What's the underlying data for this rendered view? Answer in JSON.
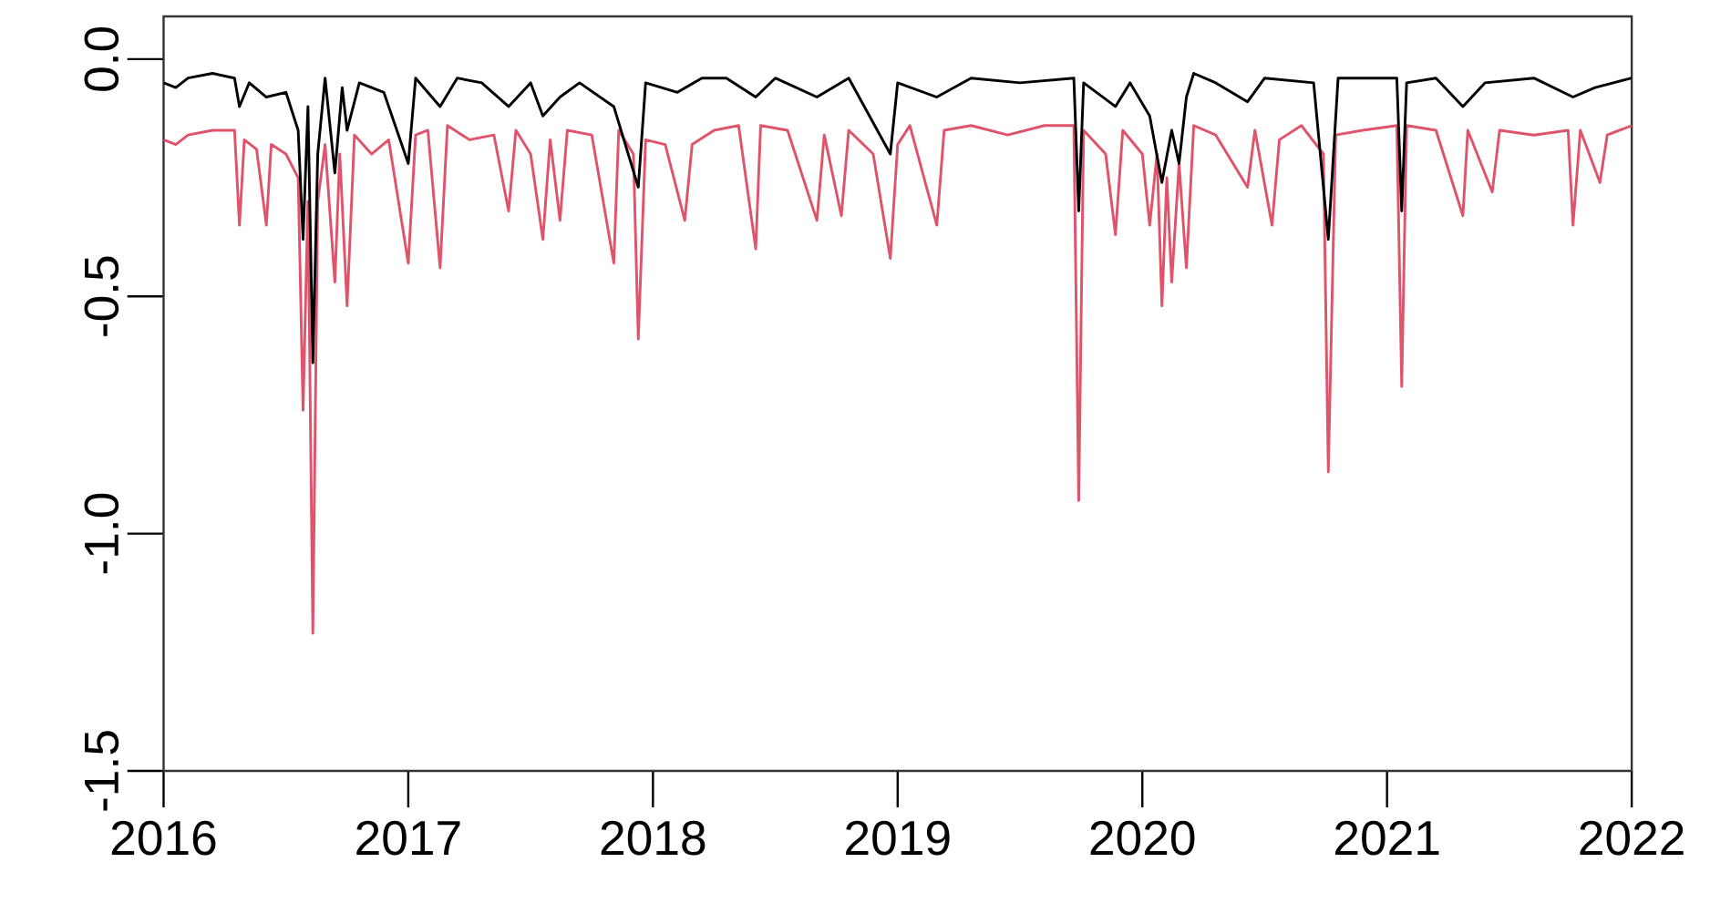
{
  "chart_data": {
    "type": "line",
    "xlim": [
      2016,
      2022
    ],
    "ylim": [
      -1.5,
      0.09
    ],
    "xticks": [
      2016,
      2017,
      2018,
      2019,
      2020,
      2021,
      2022
    ],
    "yticks": [
      -1.5,
      {
        "value": -1.0,
        "label": "-1.0"
      },
      -0.5,
      {
        "value": 0.0,
        "label": "0.0"
      }
    ],
    "grid": false,
    "marker": "none",
    "line_style": "solid",
    "series": [
      {
        "color": "#df536b",
        "x": [
          2016.0,
          2016.05,
          2016.1,
          2016.2,
          2016.29,
          2016.31,
          2016.33,
          2016.38,
          2016.42,
          2016.44,
          2016.5,
          2016.55,
          2016.57,
          2016.59,
          2016.61,
          2016.63,
          2016.66,
          2016.7,
          2016.72,
          2016.75,
          2016.78,
          2016.85,
          2016.92,
          2017.0,
          2017.03,
          2017.08,
          2017.13,
          2017.16,
          2017.25,
          2017.35,
          2017.41,
          2017.44,
          2017.5,
          2017.55,
          2017.58,
          2017.62,
          2017.65,
          2017.75,
          2017.84,
          2017.86,
          2017.92,
          2017.94,
          2017.97,
          2018.05,
          2018.13,
          2018.16,
          2018.25,
          2018.35,
          2018.42,
          2018.44,
          2018.55,
          2018.67,
          2018.7,
          2018.77,
          2018.8,
          2018.9,
          2018.97,
          2019.0,
          2019.05,
          2019.16,
          2019.19,
          2019.3,
          2019.45,
          2019.6,
          2019.72,
          2019.74,
          2019.76,
          2019.85,
          2019.89,
          2019.92,
          2020.0,
          2020.03,
          2020.06,
          2020.08,
          2020.1,
          2020.12,
          2020.15,
          2020.18,
          2020.21,
          2020.3,
          2020.43,
          2020.46,
          2020.53,
          2020.56,
          2020.65,
          2020.74,
          2020.76,
          2020.79,
          2020.9,
          2021.04,
          2021.06,
          2021.08,
          2021.2,
          2021.31,
          2021.33,
          2021.43,
          2021.46,
          2021.6,
          2021.74,
          2021.76,
          2021.79,
          2021.87,
          2021.9,
          2022.0
        ],
        "values": [
          -0.17,
          -0.18,
          -0.16,
          -0.15,
          -0.15,
          -0.35,
          -0.17,
          -0.19,
          -0.35,
          -0.18,
          -0.2,
          -0.25,
          -0.74,
          -0.3,
          -1.21,
          -0.3,
          -0.18,
          -0.47,
          -0.2,
          -0.52,
          -0.16,
          -0.2,
          -0.17,
          -0.43,
          -0.16,
          -0.15,
          -0.44,
          -0.14,
          -0.17,
          -0.16,
          -0.32,
          -0.15,
          -0.2,
          -0.38,
          -0.17,
          -0.34,
          -0.15,
          -0.16,
          -0.43,
          -0.15,
          -0.2,
          -0.59,
          -0.17,
          -0.18,
          -0.34,
          -0.18,
          -0.15,
          -0.14,
          -0.4,
          -0.14,
          -0.15,
          -0.34,
          -0.16,
          -0.33,
          -0.15,
          -0.2,
          -0.42,
          -0.18,
          -0.14,
          -0.35,
          -0.15,
          -0.14,
          -0.16,
          -0.14,
          -0.14,
          -0.93,
          -0.15,
          -0.2,
          -0.37,
          -0.15,
          -0.2,
          -0.35,
          -0.2,
          -0.52,
          -0.25,
          -0.47,
          -0.22,
          -0.44,
          -0.14,
          -0.16,
          -0.27,
          -0.15,
          -0.35,
          -0.17,
          -0.14,
          -0.2,
          -0.87,
          -0.16,
          -0.15,
          -0.14,
          -0.69,
          -0.14,
          -0.15,
          -0.33,
          -0.15,
          -0.28,
          -0.15,
          -0.16,
          -0.15,
          -0.35,
          -0.15,
          -0.26,
          -0.16,
          -0.14
        ]
      },
      {
        "color": "#000000",
        "x": [
          2016.0,
          2016.05,
          2016.1,
          2016.2,
          2016.29,
          2016.31,
          2016.35,
          2016.42,
          2016.5,
          2016.55,
          2016.57,
          2016.59,
          2016.61,
          2016.63,
          2016.66,
          2016.7,
          2016.73,
          2016.75,
          2016.8,
          2016.9,
          2017.0,
          2017.03,
          2017.13,
          2017.2,
          2017.3,
          2017.41,
          2017.5,
          2017.55,
          2017.62,
          2017.7,
          2017.84,
          2017.94,
          2017.97,
          2018.1,
          2018.2,
          2018.3,
          2018.42,
          2018.5,
          2018.67,
          2018.8,
          2018.97,
          2019.0,
          2019.16,
          2019.3,
          2019.5,
          2019.72,
          2019.74,
          2019.76,
          2019.89,
          2019.95,
          2020.03,
          2020.08,
          2020.12,
          2020.15,
          2020.18,
          2020.21,
          2020.3,
          2020.43,
          2020.5,
          2020.7,
          2020.76,
          2020.8,
          2021.04,
          2021.06,
          2021.08,
          2021.2,
          2021.31,
          2021.4,
          2021.6,
          2021.76,
          2021.85,
          2022.0
        ],
        "values": [
          -0.05,
          -0.06,
          -0.04,
          -0.03,
          -0.04,
          -0.1,
          -0.05,
          -0.08,
          -0.07,
          -0.15,
          -0.38,
          -0.1,
          -0.64,
          -0.2,
          -0.04,
          -0.24,
          -0.06,
          -0.15,
          -0.05,
          -0.07,
          -0.22,
          -0.04,
          -0.1,
          -0.04,
          -0.05,
          -0.1,
          -0.05,
          -0.12,
          -0.08,
          -0.05,
          -0.1,
          -0.27,
          -0.05,
          -0.07,
          -0.04,
          -0.04,
          -0.08,
          -0.04,
          -0.08,
          -0.04,
          -0.2,
          -0.05,
          -0.08,
          -0.04,
          -0.05,
          -0.04,
          -0.32,
          -0.05,
          -0.1,
          -0.05,
          -0.12,
          -0.26,
          -0.15,
          -0.22,
          -0.08,
          -0.03,
          -0.05,
          -0.09,
          -0.04,
          -0.05,
          -0.38,
          -0.04,
          -0.04,
          -0.32,
          -0.05,
          -0.04,
          -0.1,
          -0.05,
          -0.04,
          -0.08,
          -0.06,
          -0.04
        ]
      }
    ]
  }
}
